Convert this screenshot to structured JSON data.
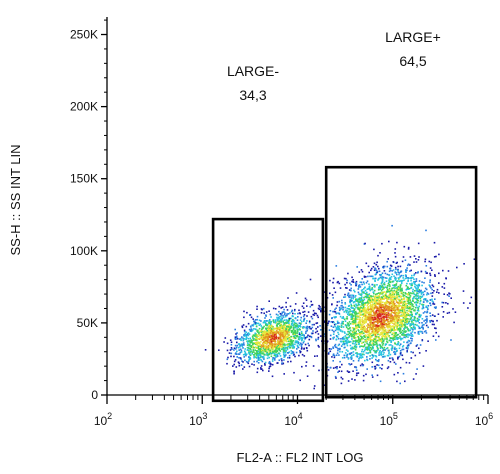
{
  "chart_data": {
    "type": "scatter",
    "xlabel": "FL2-A :: FL2 INT LOG",
    "ylabel": "SS-H :: SS INT LIN",
    "x_scale": "log",
    "xlim": [
      100,
      1000000
    ],
    "ylim": [
      0,
      262144
    ],
    "x_ticks": [
      {
        "value": 100,
        "base": "10",
        "exp": "2"
      },
      {
        "value": 1000,
        "base": "10",
        "exp": "3"
      },
      {
        "value": 10000,
        "base": "10",
        "exp": "4"
      },
      {
        "value": 100000,
        "base": "10",
        "exp": "5"
      },
      {
        "value": 1000000,
        "base": "10",
        "exp": "6"
      }
    ],
    "y_ticks": [
      {
        "value": 0,
        "label": "0"
      },
      {
        "value": 50000,
        "label": "50K"
      },
      {
        "value": 100000,
        "label": "100K"
      },
      {
        "value": 150000,
        "label": "150K"
      },
      {
        "value": 200000,
        "label": "200K"
      },
      {
        "value": 250000,
        "label": "250K"
      }
    ],
    "density_colormap": [
      "#1a1aa8",
      "#2a7de0",
      "#27c4e0",
      "#3fd25a",
      "#e7e63a",
      "#e2941f",
      "#d8281e"
    ],
    "populations": [
      {
        "center_x": 5500,
        "center_y": 40000,
        "spread_log_x": 0.2,
        "spread_y": 9000,
        "points": 1500
      },
      {
        "center_x": 75000,
        "center_y": 55000,
        "spread_log_x": 0.28,
        "spread_y": 17000,
        "points": 3000
      }
    ],
    "gates": [
      {
        "name": "LARGE-",
        "value": "34,3",
        "x_range": [
          1300,
          18500
        ],
        "y_range": [
          -4000,
          122000
        ]
      },
      {
        "name": "LARGE+",
        "value": "64,5",
        "x_range": [
          20000,
          750000
        ],
        "y_range": [
          -1500,
          158000
        ]
      }
    ]
  }
}
